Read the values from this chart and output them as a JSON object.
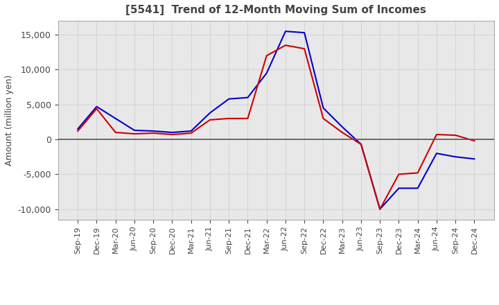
{
  "title": "[5541]  Trend of 12-Month Moving Sum of Incomes",
  "ylabel": "Amount (million yen)",
  "ylim": [
    -11500,
    17000
  ],
  "yticks": [
    -10000,
    -5000,
    0,
    5000,
    10000,
    15000
  ],
  "background_color": "#ffffff",
  "plot_bg_color": "#e8e8e8",
  "grid_color": "#aaaaaa",
  "ordinary_income_color": "#0000cc",
  "net_income_color": "#cc0000",
  "x_labels": [
    "Sep-19",
    "Dec-19",
    "Mar-20",
    "Jun-20",
    "Sep-20",
    "Dec-20",
    "Mar-21",
    "Jun-21",
    "Sep-21",
    "Dec-21",
    "Mar-22",
    "Jun-22",
    "Sep-22",
    "Dec-22",
    "Mar-23",
    "Jun-23",
    "Sep-23",
    "Dec-23",
    "Mar-24",
    "Jun-24",
    "Sep-24",
    "Dec-24"
  ],
  "ordinary_income": [
    1500,
    4700,
    3000,
    1300,
    1200,
    1000,
    1200,
    3800,
    5800,
    6000,
    9500,
    15500,
    15300,
    4500,
    1800,
    -700,
    -10000,
    -7000,
    -7000,
    -2000,
    -2500,
    -2800
  ],
  "net_income": [
    1200,
    4400,
    1000,
    800,
    900,
    700,
    900,
    2800,
    3000,
    3000,
    12000,
    13500,
    13000,
    3000,
    1000,
    -700,
    -10000,
    -5000,
    -4800,
    700,
    600,
    -200
  ]
}
